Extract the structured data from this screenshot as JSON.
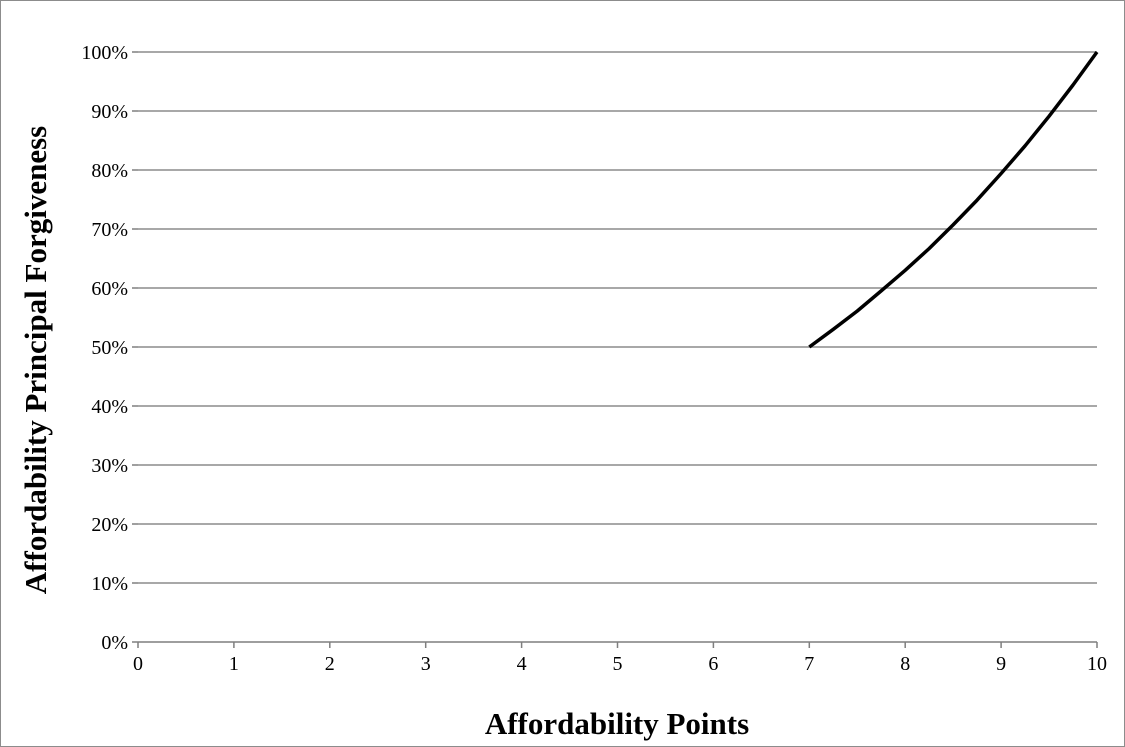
{
  "chart_data": {
    "type": "line",
    "title": "",
    "xlabel": "Affordability Points",
    "ylabel": "Affordability Principal Forgiveness",
    "xlim": [
      0,
      10
    ],
    "ylim": [
      0,
      1
    ],
    "x_ticks": [
      "0",
      "1",
      "2",
      "3",
      "4",
      "5",
      "6",
      "7",
      "8",
      "9",
      "10"
    ],
    "y_ticks": [
      "0%",
      "10%",
      "20%",
      "30%",
      "40%",
      "50%",
      "60%",
      "70%",
      "80%",
      "90%",
      "100%"
    ],
    "grid": "horizontal major gridlines",
    "legend": "none",
    "series": [
      {
        "color": "#000000",
        "x": [
          7.0,
          7.25,
          7.5,
          7.75,
          8.0,
          8.25,
          8.5,
          8.75,
          9.0,
          9.25,
          9.5,
          9.75,
          10.0
        ],
        "y": [
          0.5,
          0.53,
          0.561,
          0.595,
          0.63,
          0.667,
          0.707,
          0.749,
          0.794,
          0.841,
          0.891,
          0.944,
          1.0
        ]
      }
    ]
  }
}
